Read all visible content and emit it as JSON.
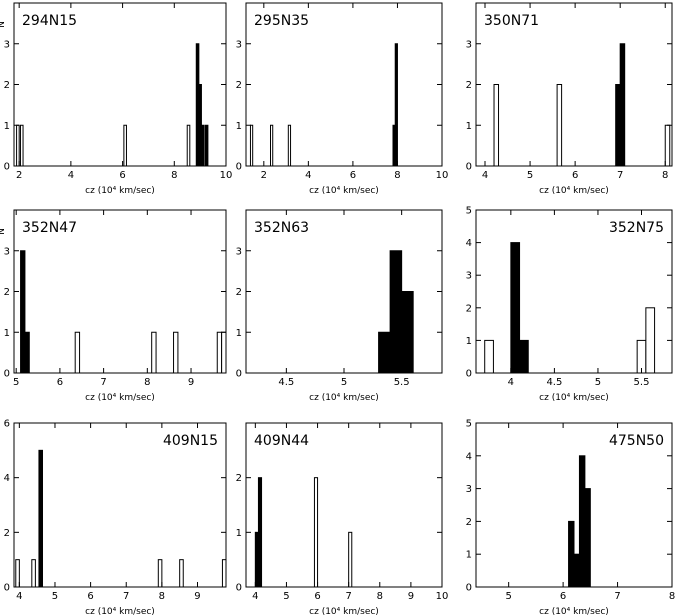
{
  "figure": {
    "y_axis_label": "N"
  },
  "chart_data": [
    {
      "type": "bar",
      "title": "294N15",
      "xlabel": "cz (10⁴ km/sec)",
      "ylabel": "N",
      "xlim": [
        1.8,
        10
      ],
      "ylim": [
        0,
        4
      ],
      "xticks": [
        2,
        4,
        6,
        8,
        10
      ],
      "yticks": [
        0,
        1,
        2,
        3
      ],
      "bin_width": 0.1,
      "open_bins": [
        {
          "x": 1.95,
          "n": 1
        },
        {
          "x": 2.1,
          "n": 1
        },
        {
          "x": 6.1,
          "n": 1
        },
        {
          "x": 8.55,
          "n": 1
        }
      ],
      "filled_bins": [
        {
          "x": 8.9,
          "n": 3
        },
        {
          "x": 9.0,
          "n": 2
        },
        {
          "x": 9.1,
          "n": 1
        },
        {
          "x": 9.25,
          "n": 1
        }
      ]
    },
    {
      "type": "bar",
      "title": "295N35",
      "xlabel": "cz (10⁴ km/sec)",
      "ylabel": "",
      "xlim": [
        1.2,
        10
      ],
      "ylim": [
        0,
        4
      ],
      "xticks": [
        2,
        4,
        6,
        8,
        10
      ],
      "yticks": [
        0,
        1,
        2,
        3
      ],
      "bin_width": 0.1,
      "open_bins": [
        {
          "x": 1.45,
          "n": 1
        },
        {
          "x": 2.35,
          "n": 1
        },
        {
          "x": 3.15,
          "n": 1
        }
      ],
      "filled_bins": [
        {
          "x": 7.85,
          "n": 1
        },
        {
          "x": 7.95,
          "n": 3
        }
      ]
    },
    {
      "type": "bar",
      "title": "350N71",
      "xlabel": "cz (10⁴ km/sec)",
      "ylabel": "",
      "xlim": [
        3.8,
        8.15
      ],
      "ylim": [
        0,
        4
      ],
      "xticks": [
        4,
        5,
        6,
        7,
        8
      ],
      "yticks": [
        0,
        1,
        2,
        3
      ],
      "bin_width": 0.1,
      "open_bins": [
        {
          "x": 4.25,
          "n": 2
        },
        {
          "x": 5.65,
          "n": 2
        },
        {
          "x": 8.05,
          "n": 1
        }
      ],
      "filled_bins": [
        {
          "x": 6.95,
          "n": 2
        },
        {
          "x": 7.05,
          "n": 3
        }
      ]
    },
    {
      "type": "bar",
      "title": "352N47",
      "xlabel": "cz (10⁴ km/sec)",
      "ylabel": "N",
      "xlim": [
        4.95,
        9.8
      ],
      "ylim": [
        0,
        4
      ],
      "xticks": [
        5,
        6,
        7,
        8,
        9
      ],
      "yticks": [
        0,
        1,
        2,
        3
      ],
      "bin_width": 0.1,
      "open_bins": [
        {
          "x": 6.4,
          "n": 1
        },
        {
          "x": 8.15,
          "n": 1
        },
        {
          "x": 8.65,
          "n": 1
        },
        {
          "x": 9.65,
          "n": 1
        },
        {
          "x": 9.75,
          "n": 1
        }
      ],
      "filled_bins": [
        {
          "x": 5.15,
          "n": 3
        },
        {
          "x": 5.25,
          "n": 1
        }
      ]
    },
    {
      "type": "bar",
      "title": "352N63",
      "xlabel": "cz (10⁴ km/sec)",
      "ylabel": "",
      "xlim": [
        4.15,
        5.85
      ],
      "ylim": [
        0,
        4
      ],
      "xticks": [
        4.5,
        5,
        5.5
      ],
      "yticks": [
        0,
        1,
        2,
        3
      ],
      "bin_width": 0.1,
      "open_bins": [],
      "filled_bins": [
        {
          "x": 5.35,
          "n": 1
        },
        {
          "x": 5.45,
          "n": 3
        },
        {
          "x": 5.55,
          "n": 2
        }
      ]
    },
    {
      "type": "bar",
      "title": "352N75",
      "xlabel": "cz (10⁴ km/sec)",
      "ylabel": "",
      "xlim": [
        3.6,
        5.85
      ],
      "ylim": [
        0,
        5
      ],
      "xticks": [
        4,
        4.5,
        5,
        5.5
      ],
      "yticks": [
        0,
        1,
        2,
        3,
        4,
        5
      ],
      "bin_width": 0.1,
      "open_bins": [
        {
          "x": 3.75,
          "n": 1
        },
        {
          "x": 5.5,
          "n": 1
        },
        {
          "x": 5.6,
          "n": 2
        }
      ],
      "filled_bins": [
        {
          "x": 4.05,
          "n": 4
        },
        {
          "x": 4.15,
          "n": 1
        }
      ]
    },
    {
      "type": "bar",
      "title": "409N15",
      "xlabel": "cz (10⁴ km/sec)",
      "ylabel": "",
      "xlim": [
        3.85,
        9.8
      ],
      "ylim": [
        0,
        6
      ],
      "xticks": [
        4,
        5,
        6,
        7,
        8,
        9
      ],
      "yticks": [
        0,
        2,
        4,
        6
      ],
      "bin_width": 0.1,
      "open_bins": [
        {
          "x": 3.95,
          "n": 1
        },
        {
          "x": 4.4,
          "n": 1
        },
        {
          "x": 7.95,
          "n": 1
        },
        {
          "x": 8.55,
          "n": 1
        },
        {
          "x": 9.75,
          "n": 1
        }
      ],
      "filled_bins": [
        {
          "x": 4.6,
          "n": 5
        }
      ]
    },
    {
      "type": "bar",
      "title": "409N44",
      "xlabel": "cz (10⁴ km/sec)",
      "ylabel": "",
      "xlim": [
        3.7,
        10
      ],
      "ylim": [
        0,
        3
      ],
      "xticks": [
        4,
        5,
        6,
        7,
        8,
        9,
        10
      ],
      "yticks": [
        0,
        1,
        2
      ],
      "bin_width": 0.1,
      "open_bins": [
        {
          "x": 5.95,
          "n": 2
        },
        {
          "x": 7.05,
          "n": 1
        }
      ],
      "filled_bins": [
        {
          "x": 4.05,
          "n": 1
        },
        {
          "x": 4.15,
          "n": 2
        }
      ]
    },
    {
      "type": "bar",
      "title": "475N50",
      "xlabel": "cz (10⁴ km/sec)",
      "ylabel": "",
      "xlim": [
        4.4,
        8
      ],
      "ylim": [
        0,
        5
      ],
      "xticks": [
        5,
        6,
        7,
        8
      ],
      "yticks": [
        0,
        1,
        2,
        3,
        4,
        5
      ],
      "bin_width": 0.1,
      "open_bins": [],
      "filled_bins": [
        {
          "x": 6.15,
          "n": 2
        },
        {
          "x": 6.25,
          "n": 1
        },
        {
          "x": 6.35,
          "n": 4
        },
        {
          "x": 6.45,
          "n": 3
        }
      ]
    }
  ]
}
